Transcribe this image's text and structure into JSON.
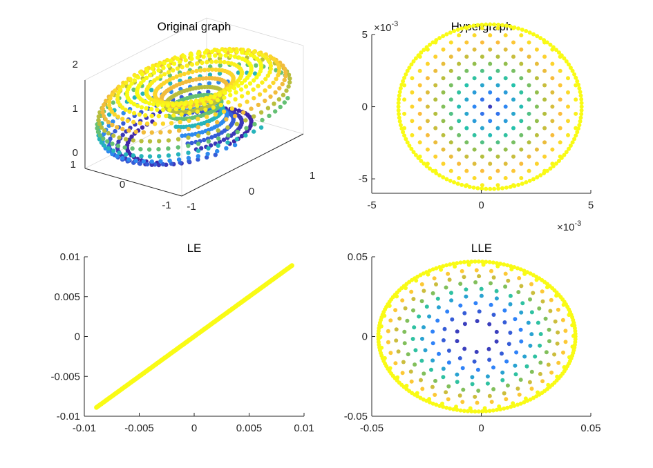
{
  "chart_data": [
    {
      "type": "scatter",
      "projection": "3d",
      "title": "Original graph",
      "surface": "torus",
      "zlim": [
        0,
        2
      ],
      "ztick_labels": [
        "0",
        "1",
        "2"
      ],
      "xtick_labels": [
        "-1",
        "0",
        "1"
      ],
      "ytick_labels": [
        "-1",
        "0",
        "1"
      ],
      "colormap": [
        "#3e26a8",
        "#2f82f8",
        "#24c1aa",
        "#a5be3d",
        "#fdbc3c",
        "#f9fb15"
      ]
    },
    {
      "type": "scatter",
      "title": "Hypergraph",
      "exponent_label": "×10",
      "exponent": "-3",
      "xlim": [
        -5,
        5
      ],
      "ylim": [
        -6,
        5
      ],
      "xticks": [
        -5,
        0,
        5
      ],
      "yticks": [
        -5,
        0,
        5
      ],
      "xtick_labels": [
        "-5",
        "0",
        "5"
      ],
      "ytick_labels": [
        "-5",
        "0",
        "5"
      ],
      "x_exponent_label": "×10",
      "x_exponent": "-3",
      "center": [
        0.4,
        0
      ],
      "half_width": 4.1,
      "half_height": 5.7
    },
    {
      "type": "scatter",
      "title": "LE",
      "xlim": [
        -0.01,
        0.01
      ],
      "ylim": [
        -0.01,
        0.01
      ],
      "xticks": [
        -0.01,
        -0.005,
        0,
        0.005,
        0.01
      ],
      "yticks": [
        -0.01,
        -0.005,
        0,
        0.005,
        0.01
      ],
      "xtick_labels": [
        "-0.01",
        "-0.005",
        "0",
        "0.005",
        "0.01"
      ],
      "ytick_labels": [
        "-0.01",
        "-0.005",
        "0",
        "0.005",
        "0.01"
      ],
      "line_from": [
        -0.0089,
        -0.0089
      ],
      "line_to": [
        0.0089,
        0.0089
      ],
      "point_color": "#f9fb15"
    },
    {
      "type": "scatter",
      "title": "LLE",
      "xlim": [
        -0.05,
        0.05
      ],
      "ylim": [
        -0.05,
        0.05
      ],
      "xticks": [
        -0.05,
        0,
        0.05
      ],
      "yticks": [
        -0.05,
        0,
        0.05
      ],
      "xtick_labels": [
        "-0.05",
        "0",
        "0.05"
      ],
      "ytick_labels": [
        "-0.05",
        "0",
        "0.05"
      ],
      "center": [
        -0.002,
        0
      ],
      "half_width": 0.045,
      "half_height": 0.047
    }
  ]
}
